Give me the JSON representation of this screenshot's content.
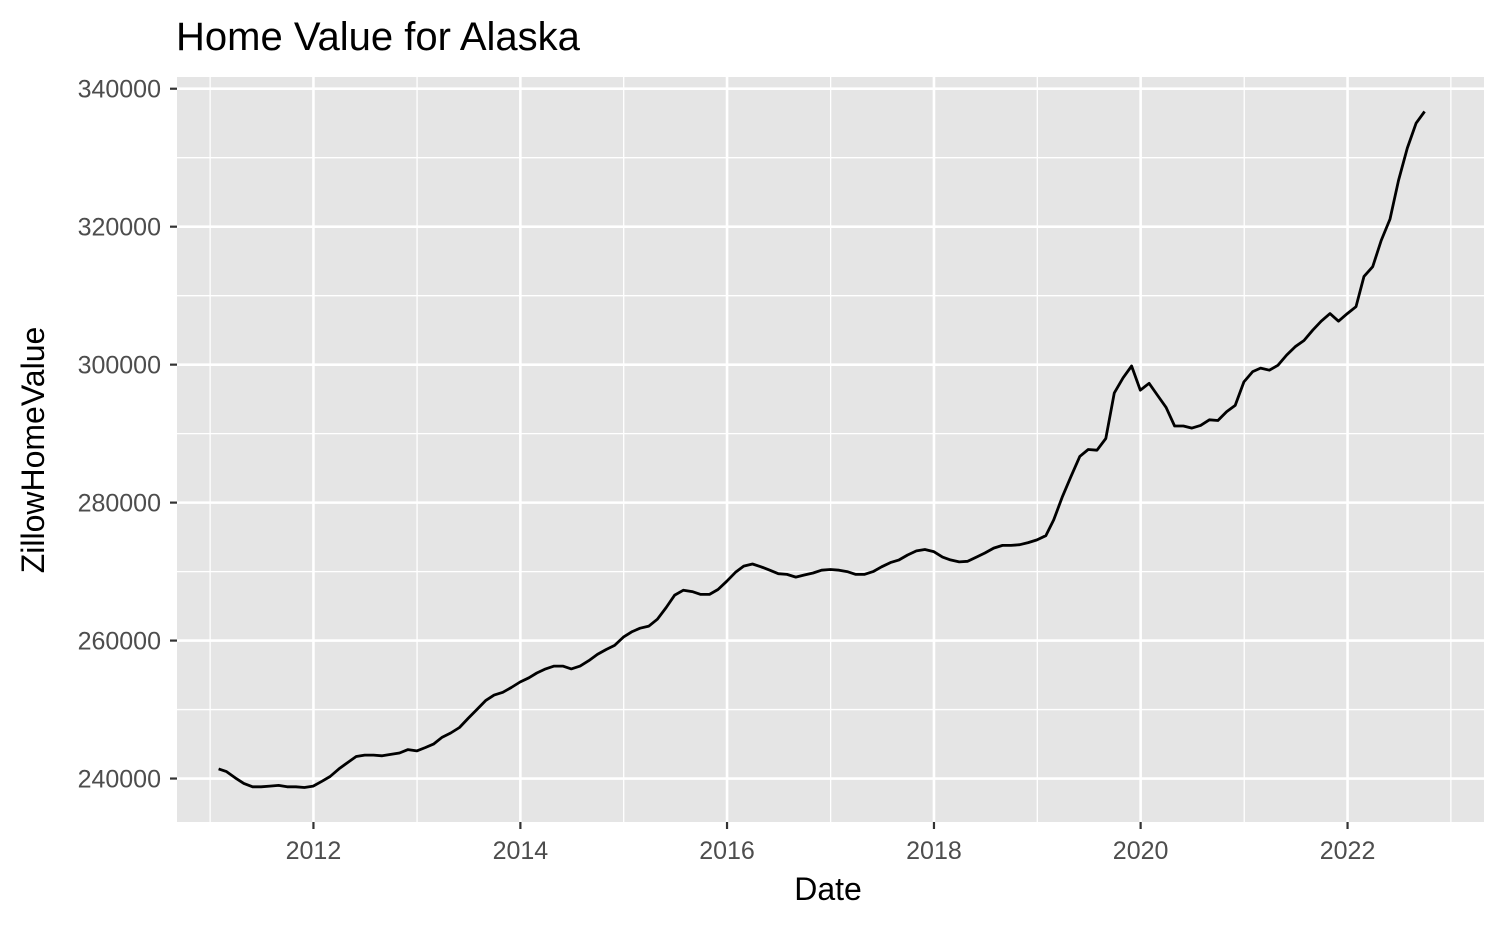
{
  "chart_data": {
    "type": "line",
    "title": "Home Value for Alaska",
    "xlabel": "Date",
    "ylabel": "ZillowHomeValue",
    "x_axis_type": "date",
    "x_range": [
      "2010-09-06",
      "2023-04-28"
    ],
    "xticks": [
      "2012",
      "2014",
      "2016",
      "2018",
      "2020",
      "2022"
    ],
    "ylim": [
      233700,
      341700
    ],
    "yticks": [
      "240000",
      "260000",
      "280000",
      "300000",
      "320000",
      "340000"
    ],
    "grid": true,
    "panel_background": "#e5e5e5",
    "grid_color": "#ffffff",
    "line_color": "#000000",
    "series": [
      {
        "x": [
          "2011-01-31",
          "2011-02-28",
          "2011-03-31",
          "2011-04-30",
          "2011-05-31",
          "2011-06-30",
          "2011-07-31",
          "2011-08-31",
          "2011-09-30",
          "2011-10-31",
          "2011-11-30",
          "2011-12-31",
          "2012-01-31",
          "2012-02-29",
          "2012-03-31",
          "2012-04-30",
          "2012-05-31",
          "2012-06-30",
          "2012-07-31",
          "2012-08-31",
          "2012-09-30",
          "2012-10-31",
          "2012-11-30",
          "2012-12-31",
          "2013-01-31",
          "2013-02-28",
          "2013-03-31",
          "2013-04-30",
          "2013-05-31",
          "2013-06-30",
          "2013-07-31",
          "2013-08-31",
          "2013-09-30",
          "2013-10-31",
          "2013-11-30",
          "2013-12-31",
          "2014-01-31",
          "2014-02-28",
          "2014-03-31",
          "2014-04-30",
          "2014-05-31",
          "2014-06-30",
          "2014-07-31",
          "2014-08-31",
          "2014-09-30",
          "2014-10-31",
          "2014-11-30",
          "2014-12-31",
          "2015-01-31",
          "2015-02-28",
          "2015-03-31",
          "2015-04-30",
          "2015-05-31",
          "2015-06-30",
          "2015-07-31",
          "2015-08-31",
          "2015-09-30",
          "2015-10-31",
          "2015-11-30",
          "2015-12-31",
          "2016-01-31",
          "2016-02-29",
          "2016-03-31",
          "2016-04-30",
          "2016-05-31",
          "2016-06-30",
          "2016-07-31",
          "2016-08-31",
          "2016-09-30",
          "2016-10-31",
          "2016-11-30",
          "2016-12-31",
          "2017-01-31",
          "2017-02-28",
          "2017-03-31",
          "2017-04-30",
          "2017-05-31",
          "2017-06-30",
          "2017-07-31",
          "2017-08-31",
          "2017-09-30",
          "2017-10-31",
          "2017-11-30",
          "2017-12-31",
          "2018-01-31",
          "2018-02-28",
          "2018-03-31",
          "2018-04-30",
          "2018-05-31",
          "2018-06-30",
          "2018-07-31",
          "2018-08-31",
          "2018-09-30",
          "2018-10-31",
          "2018-11-30",
          "2018-12-31",
          "2019-01-31",
          "2019-02-28",
          "2019-03-31",
          "2019-04-30",
          "2019-05-31",
          "2019-06-30",
          "2019-07-31",
          "2019-08-31",
          "2019-09-30",
          "2019-10-31",
          "2019-11-30",
          "2019-12-31",
          "2020-01-31",
          "2020-02-29",
          "2020-03-31",
          "2020-04-30",
          "2020-05-31",
          "2020-06-30",
          "2020-07-31",
          "2020-08-31",
          "2020-09-30",
          "2020-10-31",
          "2020-11-30",
          "2020-12-31",
          "2021-01-31",
          "2021-02-28",
          "2021-03-31",
          "2021-04-30",
          "2021-05-31",
          "2021-06-30",
          "2021-07-31",
          "2021-08-31",
          "2021-09-30",
          "2021-10-31",
          "2021-11-30",
          "2021-12-31",
          "2022-01-31",
          "2022-02-28",
          "2022-03-31",
          "2022-04-30",
          "2022-05-31",
          "2022-06-30",
          "2022-07-31",
          "2022-08-31",
          "2022-09-30"
        ],
        "y": [
          241400,
          241000,
          240100,
          239300,
          238800,
          238800,
          238900,
          239000,
          238800,
          238800,
          238700,
          238900,
          239600,
          240300,
          241400,
          242300,
          243200,
          243400,
          243400,
          243300,
          243500,
          243700,
          244200,
          244000,
          244500,
          245000,
          246000,
          246600,
          247400,
          248700,
          250000,
          251300,
          252100,
          252500,
          253200,
          254000,
          254600,
          255300,
          255900,
          256300,
          256300,
          255900,
          256300,
          257100,
          258000,
          258700,
          259300,
          260500,
          261300,
          261800,
          262100,
          263100,
          264800,
          266600,
          267300,
          267100,
          266700,
          266700,
          267400,
          268600,
          269900,
          270800,
          271100,
          270700,
          270200,
          269700,
          269600,
          269200,
          269500,
          269800,
          270200,
          270300,
          270200,
          270000,
          269600,
          269600,
          270000,
          270700,
          271300,
          271700,
          272400,
          273000,
          273200,
          272900,
          272100,
          271700,
          271400,
          271500,
          272100,
          272700,
          273400,
          273800,
          273800,
          273900,
          274200,
          274600,
          275200,
          277500,
          280900,
          283800,
          286700,
          287700,
          287600,
          289300,
          295900,
          298100,
          299800,
          296300,
          297300,
          295600,
          293800,
          291100,
          291100,
          290800,
          291200,
          292000,
          291900,
          293200,
          294100,
          297500,
          299000,
          299500,
          299200,
          299900,
          301400,
          302600,
          303500,
          305000,
          306300,
          307400,
          306300,
          307400,
          308400,
          312800,
          314200,
          318000,
          321100,
          326700,
          331400,
          335000,
          336700
        ]
      }
    ]
  }
}
